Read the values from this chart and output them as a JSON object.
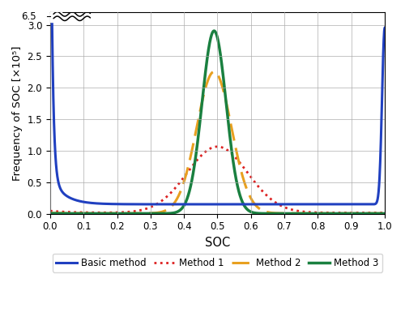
{
  "xlabel": "SOC",
  "ylabel": "Frequency of SOC [×10⁵]",
  "xlim": [
    0.0,
    1.0
  ],
  "ylim": [
    0.0,
    3.2
  ],
  "yticks": [
    0.0,
    0.5,
    1.0,
    1.5,
    2.0,
    2.5,
    3.0
  ],
  "xticks": [
    0.0,
    0.1,
    0.2,
    0.3,
    0.4,
    0.5,
    0.6,
    0.7,
    0.8,
    0.9,
    1.0
  ],
  "y_break_label": "6.5",
  "colors": {
    "basic": "#2040c0",
    "method1": "#dd2222",
    "method2": "#e8a020",
    "method3": "#1a8040"
  },
  "background_color": "#ffffff",
  "grid_color": "#aaaaaa"
}
